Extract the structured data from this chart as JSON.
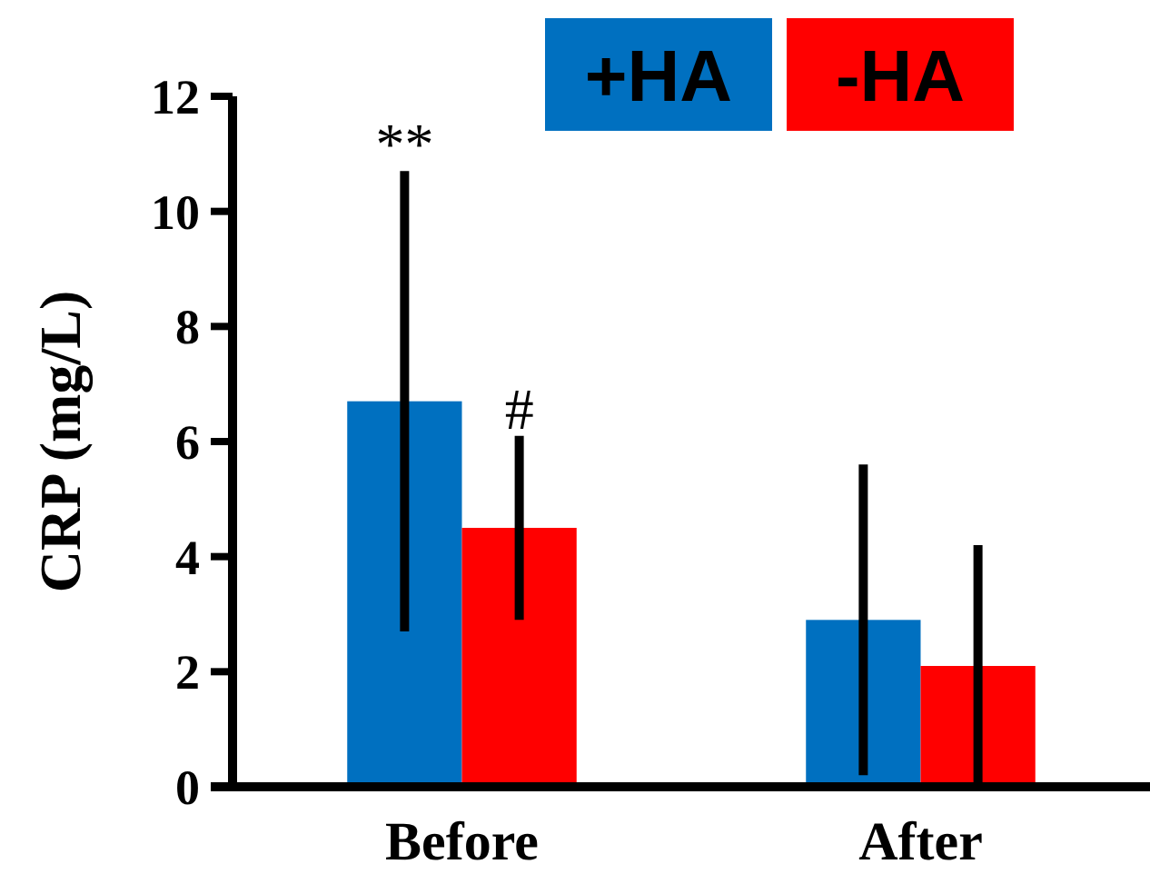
{
  "chart_data": {
    "type": "bar",
    "ylabel": "CRP (mg/L)",
    "categories": [
      "Before",
      "After"
    ],
    "series": [
      {
        "name": "+HA",
        "color": "#0070c0",
        "values": [
          6.7,
          2.9
        ],
        "errors": [
          4.0,
          2.7
        ]
      },
      {
        "name": "-HA",
        "color": "#ff0000",
        "values": [
          4.5,
          2.1
        ],
        "errors": [
          1.6,
          2.1
        ]
      }
    ],
    "ylim": [
      0,
      12
    ],
    "yticks": [
      0,
      2,
      4,
      6,
      8,
      10,
      12
    ],
    "grid": false,
    "legend": "top right",
    "annotations": [
      "**",
      "#"
    ]
  }
}
